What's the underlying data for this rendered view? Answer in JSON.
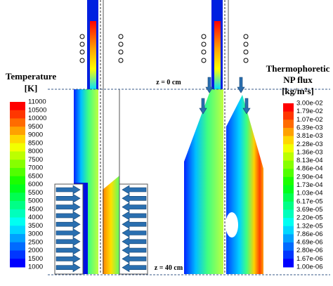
{
  "left_colorbar": {
    "title": [
      "Temperature",
      "[K]"
    ],
    "labels": [
      "11000",
      "10500",
      "10000",
      "9500",
      "9000",
      "8500",
      "8000",
      "7500",
      "7000",
      "6500",
      "6000",
      "5500",
      "5000",
      "4500",
      "4000",
      "3500",
      "3000",
      "2500",
      "2000",
      "1500",
      "1000"
    ]
  },
  "right_colorbar": {
    "title": [
      "Thermophoretic",
      "NP flux",
      "[kg/m²s]"
    ],
    "labels": [
      "3.00e-02",
      "1.79e-02",
      "1.07e-02",
      "6.39e-03",
      "3.81e-03",
      "2.28e-03",
      "1.36e-03",
      "8.13e-04",
      "4.86e-04",
      "2.90e-04",
      "1.73e-04",
      "1.03e-04",
      "6.17e-05",
      "3.69e-05",
      "2.20e-05",
      "1.32e-05",
      "7.86e-06",
      "4.69e-06",
      "2.80e-06",
      "1.67e-06",
      "1.00e-06"
    ]
  },
  "annotations": {
    "z_top": "z = 0 cm",
    "z_bottom": "z = 40 cm"
  }
}
